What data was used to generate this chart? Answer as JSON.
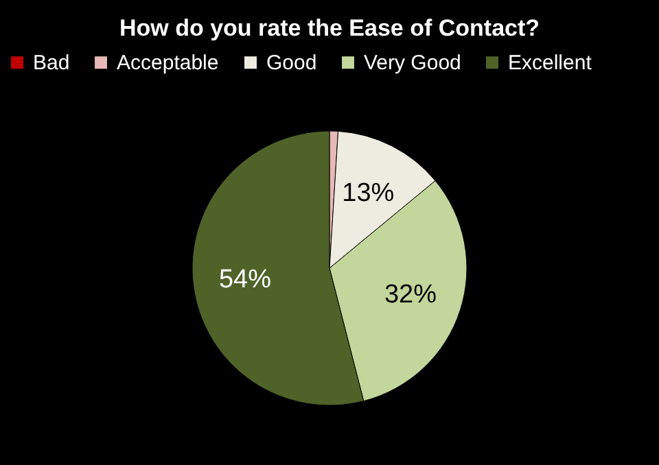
{
  "chart_data": {
    "type": "pie",
    "title": "How do you rate the Ease of Contact?",
    "categories": [
      "Bad",
      "Acceptable",
      "Good",
      "Very Good",
      "Excellent"
    ],
    "values": [
      0,
      1,
      13,
      32,
      54
    ],
    "colors": [
      "#c00000",
      "#e6b9b8",
      "#eeece1",
      "#c3d69b",
      "#4f6228"
    ],
    "value_labels": [
      null,
      null,
      "13%",
      "32%",
      "54%"
    ],
    "legend": "top"
  }
}
